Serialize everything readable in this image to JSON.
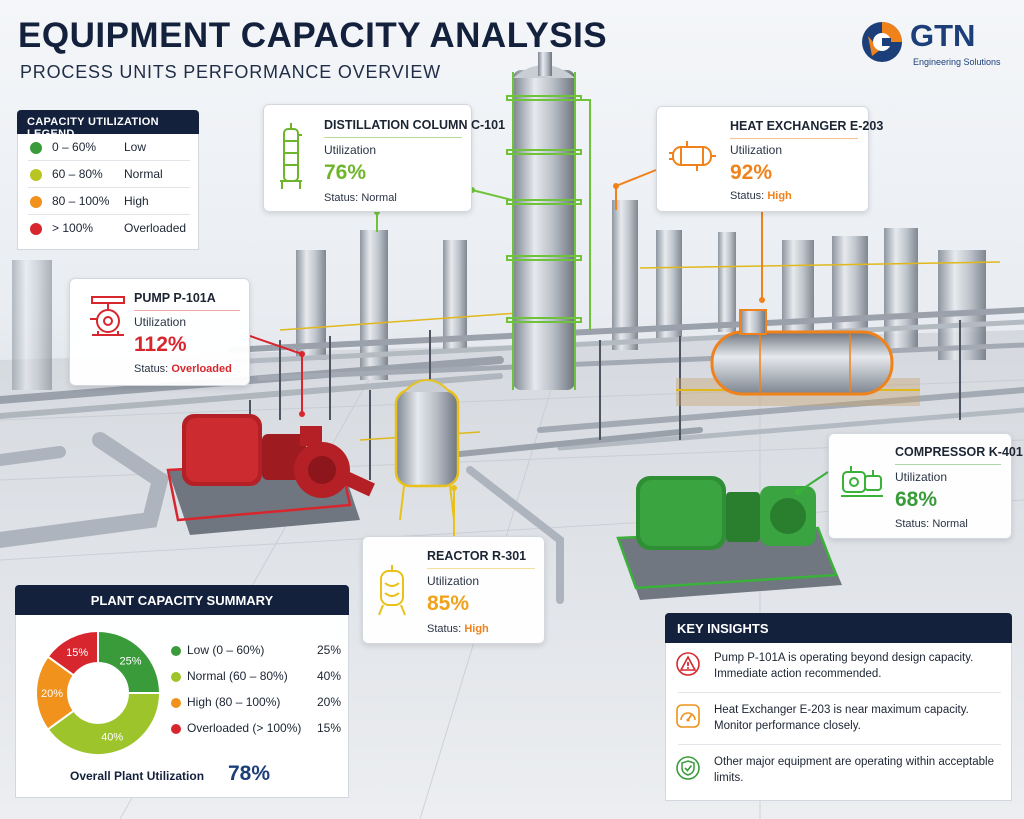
{
  "header": {
    "title": "EQUIPMENT CAPACITY ANALYSIS",
    "subtitle": "PROCESS UNITS PERFORMANCE OVERVIEW"
  },
  "logo": {
    "text": "GTN",
    "tagline": "Engineering Solutions",
    "icon": "gtn-globe-logo"
  },
  "legend": {
    "title": "CAPACITY UTILIZATION LEGEND",
    "items": [
      {
        "range": "0 – 60%",
        "level": "Low",
        "color": "#3a9b3a"
      },
      {
        "range": "60 – 80%",
        "level": "Normal",
        "color": "#b9c521"
      },
      {
        "range": "80 – 100%",
        "level": "High",
        "color": "#f0921b"
      },
      {
        "range": "> 100%",
        "level": "Overloaded",
        "color": "#d8262e"
      }
    ]
  },
  "equipment": {
    "distillation": {
      "name": "DISTILLATION COLUMN C-101",
      "util_label": "Utilization",
      "value": "76%",
      "status_label": "Status:",
      "status": "Normal",
      "color": "#6fb52c",
      "icon": "column-icon"
    },
    "heat_exchanger": {
      "name": "HEAT EXCHANGER E-203",
      "util_label": "Utilization",
      "value": "92%",
      "status_label": "Status:",
      "status": "High",
      "color": "#f0821b",
      "icon": "heat-exchanger-icon"
    },
    "pump": {
      "name": "PUMP P-101A",
      "util_label": "Utilization",
      "value": "112%",
      "status_label": "Status:",
      "status": "Overloaded",
      "color": "#d8262e",
      "icon": "pump-icon"
    },
    "compressor": {
      "name": "COMPRESSOR K-401",
      "util_label": "Utilization",
      "value": "68%",
      "status_label": "Status:",
      "status": "Normal",
      "color": "#3a9b3a",
      "icon": "compressor-icon"
    },
    "reactor": {
      "name": "REACTOR R-301",
      "util_label": "Utilization",
      "value": "85%",
      "status_label": "Status:",
      "status": "High",
      "color": "#f0a21b",
      "icon": "reactor-icon"
    }
  },
  "summary": {
    "title": "PLANT CAPACITY SUMMARY",
    "rows": [
      {
        "label": "Low (0 – 60%)",
        "value": "25%",
        "color": "#3a9b3a"
      },
      {
        "label": "Normal (60 – 80%)",
        "value": "40%",
        "color": "#9dc42a"
      },
      {
        "label": "High (80 – 100%)",
        "value": "20%",
        "color": "#f0921b"
      },
      {
        "label": "Overloaded (> 100%)",
        "value": "15%",
        "color": "#d8262e"
      }
    ],
    "overall_label": "Overall Plant Utilization",
    "overall_value": "78%"
  },
  "chart_data": {
    "type": "pie",
    "categories": [
      "Low (0 – 60%)",
      "Normal (60 – 80%)",
      "High (80 – 100%)",
      "Overloaded (> 100%)"
    ],
    "values": [
      25,
      40,
      20,
      15
    ],
    "labels": [
      "25%",
      "40%",
      "20%",
      "15%"
    ],
    "colors": [
      "#3a9b3a",
      "#9dc42a",
      "#f0921b",
      "#d8262e"
    ],
    "donut": true
  },
  "insights": {
    "title": "KEY INSIGHTS",
    "items": [
      {
        "text": "Pump P-101A is operating beyond design capacity. Immediate action recommended.",
        "icon": "warning-icon",
        "color": "#d8262e"
      },
      {
        "text": "Heat Exchanger E-203 is near maximum capacity. Monitor performance closely.",
        "icon": "gauge-icon",
        "color": "#f0921b"
      },
      {
        "text": "Other major equipment are operating within acceptable limits.",
        "icon": "check-shield-icon",
        "color": "#3a9b3a"
      }
    ]
  }
}
